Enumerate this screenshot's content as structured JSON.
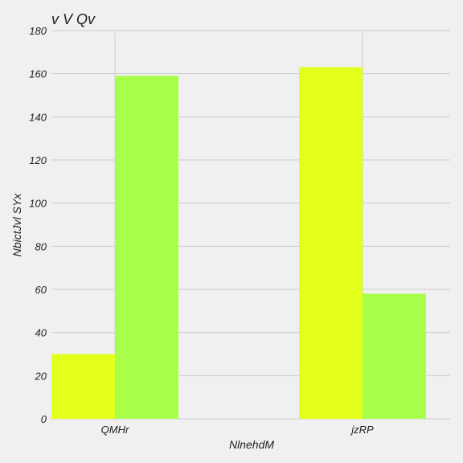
{
  "chart_data": {
    "type": "bar",
    "title": "v V Qv",
    "xlabel": "NlnehdM",
    "ylabel": "NbictJvl SYx",
    "categories": [
      "QMHr",
      "jzRP"
    ],
    "series": [
      {
        "values": [
          30,
          163
        ],
        "color": "#e3ff1c"
      },
      {
        "values": [
          159,
          58
        ],
        "color": "#a8ff4a"
      }
    ],
    "ylim": [
      0,
      180
    ],
    "yticks": [
      0,
      20,
      40,
      60,
      80,
      100,
      120,
      140,
      160,
      180
    ],
    "grid": true
  }
}
